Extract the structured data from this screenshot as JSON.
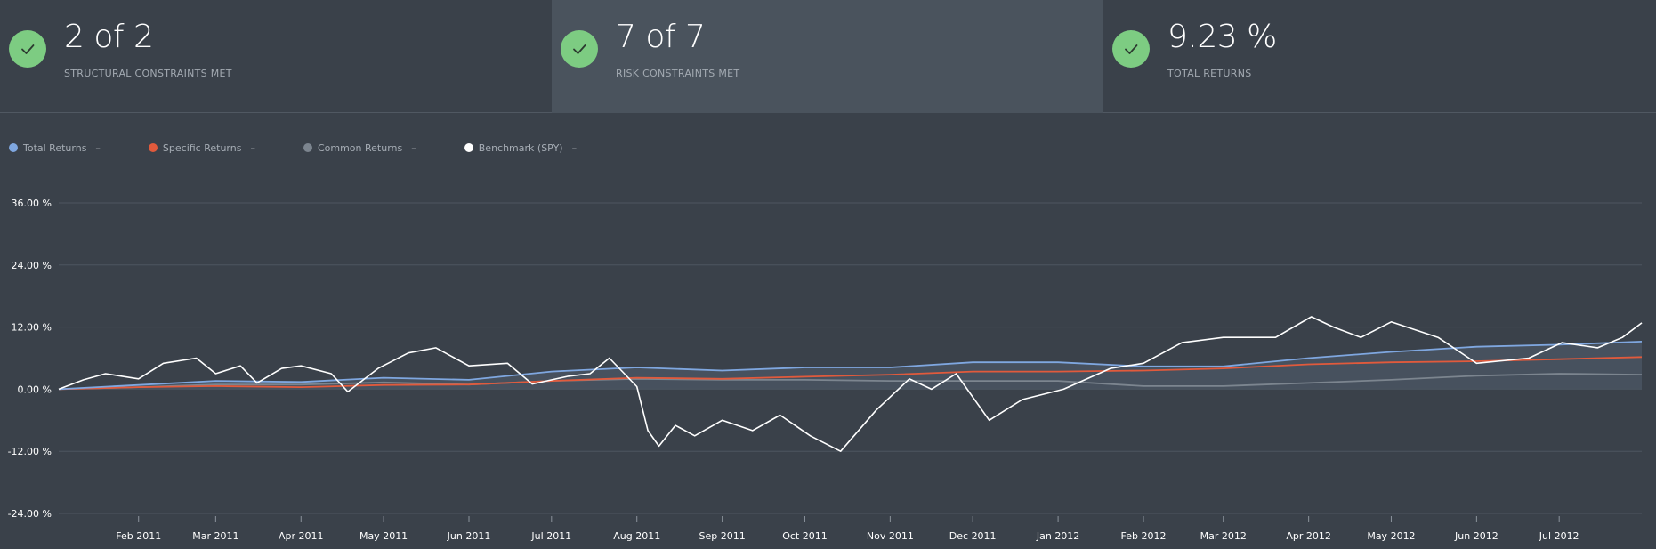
{
  "kpis": [
    {
      "value": "2 of 2",
      "label": "STRUCTURAL CONSTRAINTS MET",
      "icon": "check-icon"
    },
    {
      "value": "7 of 7",
      "label": "RISK CONSTRAINTS MET",
      "icon": "check-icon"
    },
    {
      "value": "9.23 %",
      "label": "TOTAL RETURNS",
      "icon": "check-icon"
    }
  ],
  "legend": [
    {
      "label": "Total Returns",
      "value": "–",
      "color": "#7fa7e0"
    },
    {
      "label": "Specific Returns",
      "value": "–",
      "color": "#e15a3c"
    },
    {
      "label": "Common Returns",
      "value": "–",
      "color": "#7c858f"
    },
    {
      "label": "Benchmark (SPY)",
      "value": "–",
      "color": "#ffffff"
    }
  ],
  "colors": {
    "background": "#3a414a",
    "active_card": "#4a535d",
    "check": "#7dcc82",
    "area_fill": "#4a5562"
  },
  "chart_data": {
    "type": "line",
    "title": "",
    "xlabel": "",
    "ylabel": "",
    "x_range": [
      "2011-01-03",
      "2012-07-31"
    ],
    "ylim": [
      -24,
      36
    ],
    "y_ticks": [
      36,
      24,
      12,
      0,
      -12,
      -24
    ],
    "y_tick_labels": [
      "36.00 %",
      "24.00 %",
      "12.00 %",
      "0.00 %",
      "-12.00 %",
      "-24.00 %"
    ],
    "x_ticks": [
      "2011-02-01",
      "2011-03-01",
      "2011-04-01",
      "2011-05-01",
      "2011-06-01",
      "2011-07-01",
      "2011-08-01",
      "2011-09-01",
      "2011-10-01",
      "2011-11-01",
      "2011-12-01",
      "2012-01-01",
      "2012-02-01",
      "2012-03-01",
      "2012-04-01",
      "2012-05-01",
      "2012-06-01",
      "2012-07-01"
    ],
    "x_tick_labels": [
      "Feb 2011",
      "Mar 2011",
      "Apr 2011",
      "May 2011",
      "Jun 2011",
      "Jul 2011",
      "Aug 2011",
      "Sep 2011",
      "Oct 2011",
      "Nov 2011",
      "Dec 2011",
      "Jan 2012",
      "Feb 2012",
      "Mar 2012",
      "Apr 2012",
      "May 2012",
      "Jun 2012",
      "Jul 2012"
    ],
    "grid": true,
    "legend_position": "top-left",
    "series": [
      {
        "name": "Total Returns",
        "x": [
          "2011-01-03",
          "2011-02-01",
          "2011-03-01",
          "2011-04-01",
          "2011-05-01",
          "2011-06-01",
          "2011-07-01",
          "2011-08-01",
          "2011-09-01",
          "2011-10-01",
          "2011-11-01",
          "2011-12-01",
          "2012-01-01",
          "2012-02-01",
          "2012-03-01",
          "2012-04-01",
          "2012-05-01",
          "2012-06-01",
          "2012-07-01",
          "2012-07-31"
        ],
        "y": [
          0,
          0.8,
          1.6,
          1.4,
          2.2,
          1.8,
          3.4,
          4.2,
          3.6,
          4.2,
          4.2,
          5.2,
          5.2,
          4.4,
          4.4,
          6.0,
          7.2,
          8.2,
          8.6,
          9.2
        ]
      },
      {
        "name": "Specific Returns",
        "x": [
          "2011-01-03",
          "2011-02-01",
          "2011-03-01",
          "2011-04-01",
          "2011-05-01",
          "2011-06-01",
          "2011-07-01",
          "2011-08-01",
          "2011-09-01",
          "2011-10-01",
          "2011-11-01",
          "2011-12-01",
          "2012-01-01",
          "2012-02-01",
          "2012-03-01",
          "2012-04-01",
          "2012-05-01",
          "2012-06-01",
          "2012-07-01",
          "2012-07-31"
        ],
        "y": [
          0,
          0.4,
          0.6,
          0.4,
          0.8,
          0.9,
          1.6,
          2.2,
          2.0,
          2.4,
          2.8,
          3.4,
          3.4,
          3.6,
          4.0,
          4.8,
          5.2,
          5.4,
          5.8,
          6.2
        ]
      },
      {
        "name": "Common Returns",
        "x": [
          "2011-01-03",
          "2011-02-01",
          "2011-03-01",
          "2011-04-01",
          "2011-05-01",
          "2011-06-01",
          "2011-07-01",
          "2011-08-01",
          "2011-09-01",
          "2011-10-01",
          "2011-11-01",
          "2011-12-01",
          "2012-01-01",
          "2012-02-01",
          "2012-03-01",
          "2012-04-01",
          "2012-05-01",
          "2012-06-01",
          "2012-07-01",
          "2012-07-31"
        ],
        "y": [
          0,
          0.4,
          0.9,
          0.9,
          1.3,
          0.9,
          1.6,
          2.0,
          1.8,
          1.8,
          1.6,
          1.6,
          1.6,
          0.6,
          0.6,
          1.2,
          1.8,
          2.6,
          3.0,
          2.8
        ]
      },
      {
        "name": "Benchmark (SPY)",
        "x": [
          "2011-01-03",
          "2011-01-12",
          "2011-01-20",
          "2011-02-01",
          "2011-02-10",
          "2011-02-22",
          "2011-03-01",
          "2011-03-10",
          "2011-03-16",
          "2011-03-25",
          "2011-04-01",
          "2011-04-12",
          "2011-04-18",
          "2011-04-29",
          "2011-05-10",
          "2011-05-20",
          "2011-06-01",
          "2011-06-15",
          "2011-06-24",
          "2011-07-07",
          "2011-07-15",
          "2011-07-22",
          "2011-08-01",
          "2011-08-05",
          "2011-08-09",
          "2011-08-15",
          "2011-08-22",
          "2011-09-01",
          "2011-09-12",
          "2011-09-22",
          "2011-10-03",
          "2011-10-14",
          "2011-10-27",
          "2011-11-08",
          "2011-11-16",
          "2011-11-25",
          "2011-12-07",
          "2011-12-19",
          "2012-01-03",
          "2012-01-20",
          "2012-02-01",
          "2012-02-15",
          "2012-03-01",
          "2012-03-20",
          "2012-04-02",
          "2012-04-10",
          "2012-04-20",
          "2012-05-01",
          "2012-05-18",
          "2012-06-01",
          "2012-06-20",
          "2012-07-02",
          "2012-07-15",
          "2012-07-24",
          "2012-07-31"
        ],
        "y": [
          0,
          1.8,
          3.0,
          2.0,
          5.0,
          6.0,
          3.0,
          4.5,
          1.2,
          4.0,
          4.5,
          3.0,
          -0.5,
          4.0,
          7.0,
          8.0,
          4.5,
          5.0,
          1.0,
          2.5,
          3.0,
          6.0,
          0.5,
          -8.0,
          -11.0,
          -7.0,
          -9.0,
          -6.0,
          -8.0,
          -5.0,
          -9.0,
          -12.0,
          -4.0,
          2.0,
          0.0,
          3.0,
          -6.0,
          -2.0,
          0.0,
          4.0,
          5.0,
          9.0,
          10.0,
          10.0,
          14.0,
          12.0,
          10.0,
          13.0,
          10.0,
          5.0,
          6.0,
          9.0,
          8.0,
          10.0,
          12.8
        ]
      }
    ]
  }
}
